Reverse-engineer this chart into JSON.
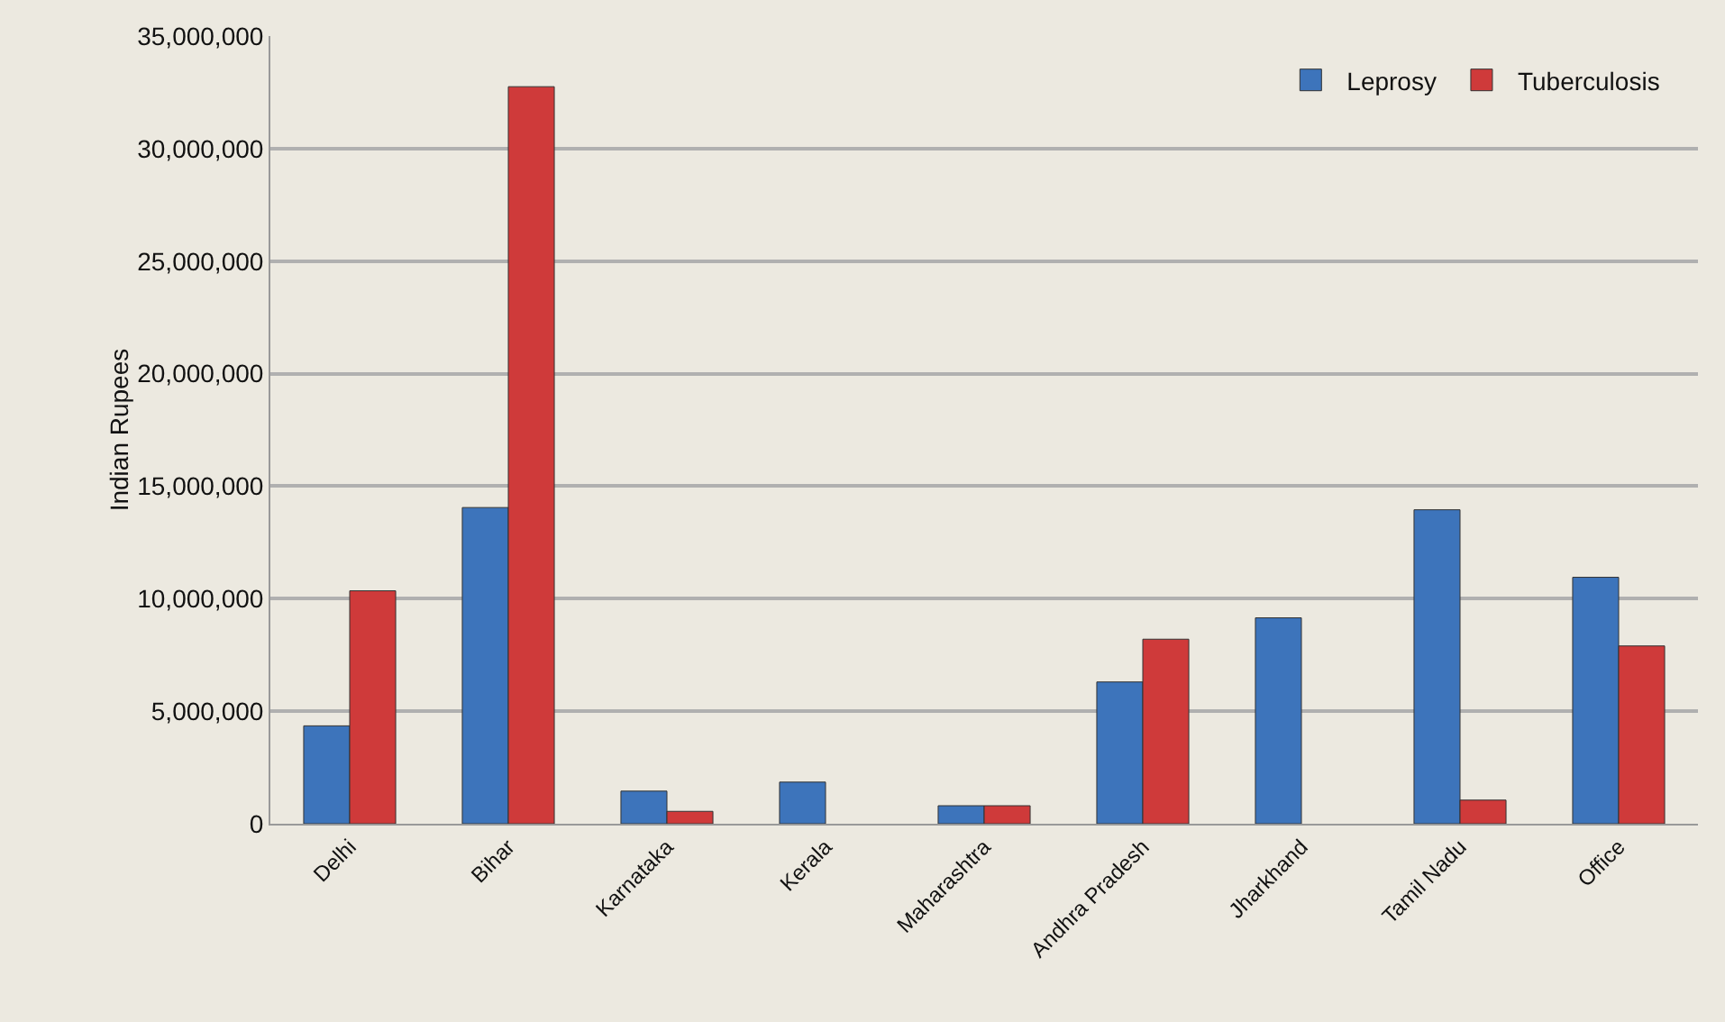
{
  "chart_data": {
    "type": "bar",
    "ylabel": "Indian Rupees",
    "categories": [
      "Delhi",
      "Bihar",
      "Karnataka",
      "Kerala",
      "Maharashtra",
      "Andhra Pradesh",
      "Jharkhand",
      "Tamil Nadu",
      "Office"
    ],
    "series": [
      {
        "name": "Leprosy",
        "color": "#3d74bb",
        "values": [
          4350000,
          14050000,
          1450000,
          1850000,
          800000,
          6300000,
          9150000,
          13950000,
          10950000
        ]
      },
      {
        "name": "Tuberculosis",
        "color": "#cf3a3a",
        "values": [
          10350000,
          32750000,
          550000,
          null,
          800000,
          8200000,
          null,
          1050000,
          7900000
        ]
      }
    ],
    "ylim": [
      0,
      35000000
    ],
    "yticks": [
      {
        "value": 0,
        "label": "0"
      },
      {
        "value": 5000000,
        "label": "5,000,000"
      },
      {
        "value": 10000000,
        "label": "10,000,000"
      },
      {
        "value": 15000000,
        "label": "15,000,000"
      },
      {
        "value": 20000000,
        "label": "20,000,000"
      },
      {
        "value": 25000000,
        "label": "25,000,000"
      },
      {
        "value": 30000000,
        "label": "30,000,000"
      },
      {
        "value": 35000000,
        "label": "35,000,000"
      }
    ],
    "grid": "y",
    "legend": "top right"
  }
}
